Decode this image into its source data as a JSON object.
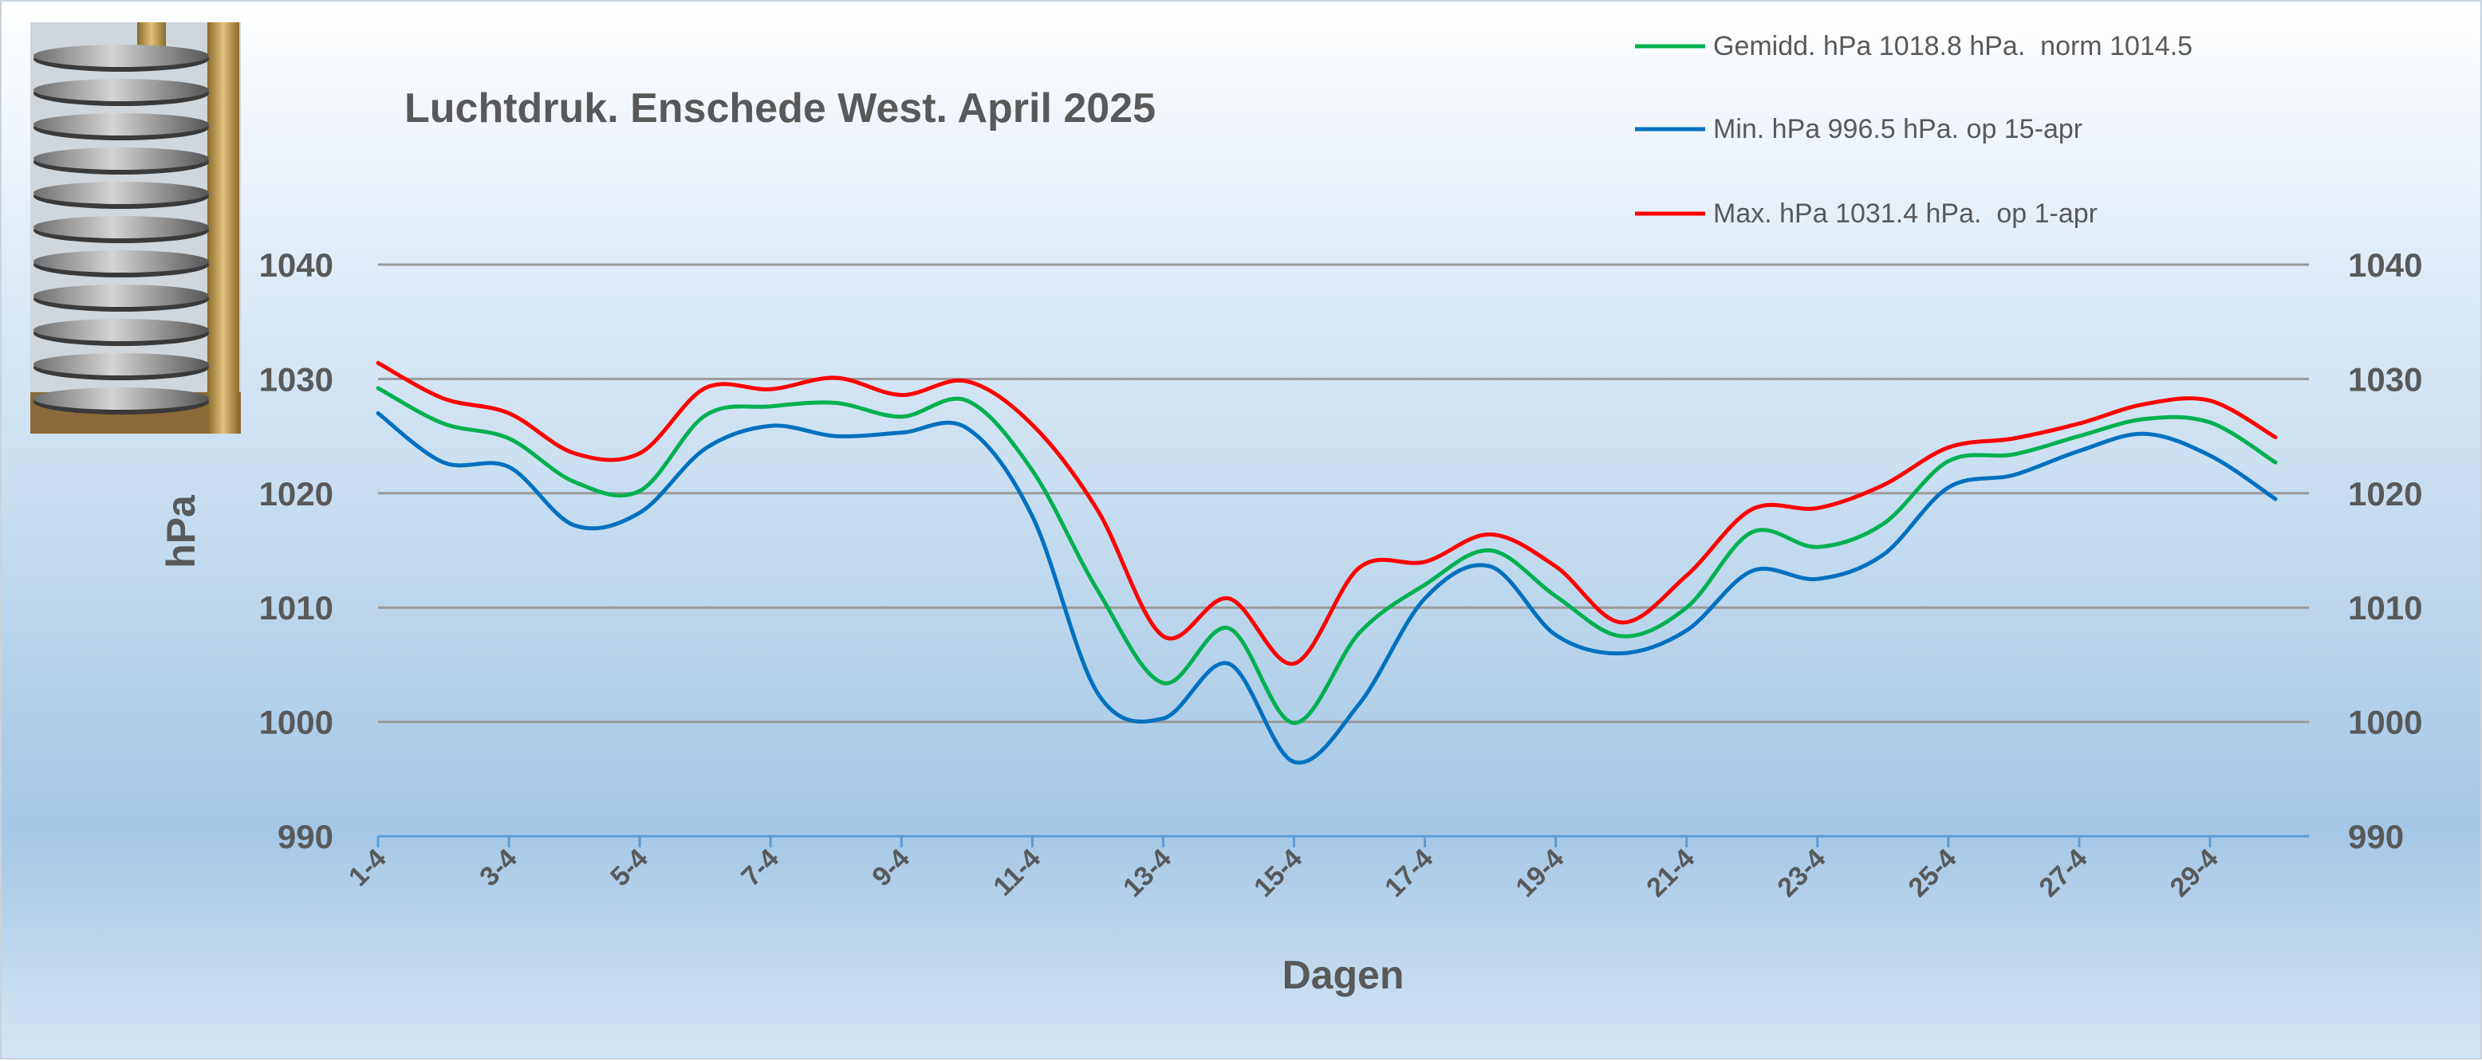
{
  "chart_data": {
    "type": "line",
    "title": "Luchtdruk. Enschede West. April 2025",
    "xlabel": "Dagen",
    "ylabel": "hPa",
    "ylim": [
      990,
      1040
    ],
    "yticks": [
      990,
      1000,
      1010,
      1020,
      1030,
      1040
    ],
    "grid": true,
    "legend_position": "top-right",
    "x": [
      "1-4",
      "2-4",
      "3-4",
      "4-4",
      "5-4",
      "6-4",
      "7-4",
      "8-4",
      "9-4",
      "10-4",
      "11-4",
      "12-4",
      "13-4",
      "14-4",
      "15-4",
      "16-4",
      "17-4",
      "18-4",
      "19-4",
      "20-4",
      "21-4",
      "22-4",
      "23-4",
      "24-4",
      "25-4",
      "26-4",
      "27-4",
      "28-4",
      "29-4",
      "30-4"
    ],
    "x_tick_labels": [
      "1-4",
      "3-4",
      "5-4",
      "7-4",
      "9-4",
      "11-4",
      "13-4",
      "15-4",
      "17-4",
      "19-4",
      "21-4",
      "23-4",
      "25-4",
      "27-4",
      "29-4"
    ],
    "series": [
      {
        "name": "Gemidd. hPa 1018.8 hPa.  norm 1014.5",
        "color": "#00b050",
        "values": [
          1029.2,
          1026.1,
          1024.8,
          1021.0,
          1020.2,
          1026.8,
          1027.6,
          1027.9,
          1026.7,
          1028.1,
          1022.0,
          1011.5,
          1003.4,
          1008.2,
          999.9,
          1007.8,
          1012.0,
          1015.0,
          1011.0,
          1007.5,
          1010.0,
          1016.6,
          1015.3,
          1017.3,
          1022.8,
          1023.4,
          1025.0,
          1026.5,
          1026.2,
          1022.7
        ]
      },
      {
        "name": "Min. hPa 996.5 hPa. op 15-apr",
        "color": "#0070c0",
        "values": [
          1027.0,
          1022.7,
          1022.3,
          1017.2,
          1018.3,
          1023.9,
          1025.9,
          1025.0,
          1025.3,
          1025.7,
          1018.0,
          1002.5,
          1000.3,
          1005.1,
          996.5,
          1001.6,
          1010.8,
          1013.6,
          1007.6,
          1006.0,
          1008.0,
          1013.2,
          1012.5,
          1014.6,
          1020.5,
          1021.6,
          1023.7,
          1025.2,
          1023.3,
          1019.5
        ]
      },
      {
        "name": "Max. hPa 1031.4 hPa.  op 1-apr",
        "color": "#ff0000",
        "values": [
          1031.4,
          1028.3,
          1027.0,
          1023.5,
          1023.5,
          1029.2,
          1029.1,
          1030.1,
          1028.6,
          1029.8,
          1026.0,
          1018.5,
          1007.5,
          1010.8,
          1005.1,
          1013.5,
          1014.0,
          1016.4,
          1013.6,
          1008.7,
          1012.8,
          1018.6,
          1018.7,
          1020.7,
          1024.0,
          1024.8,
          1026.1,
          1027.8,
          1028.1,
          1024.9
        ]
      }
    ]
  }
}
